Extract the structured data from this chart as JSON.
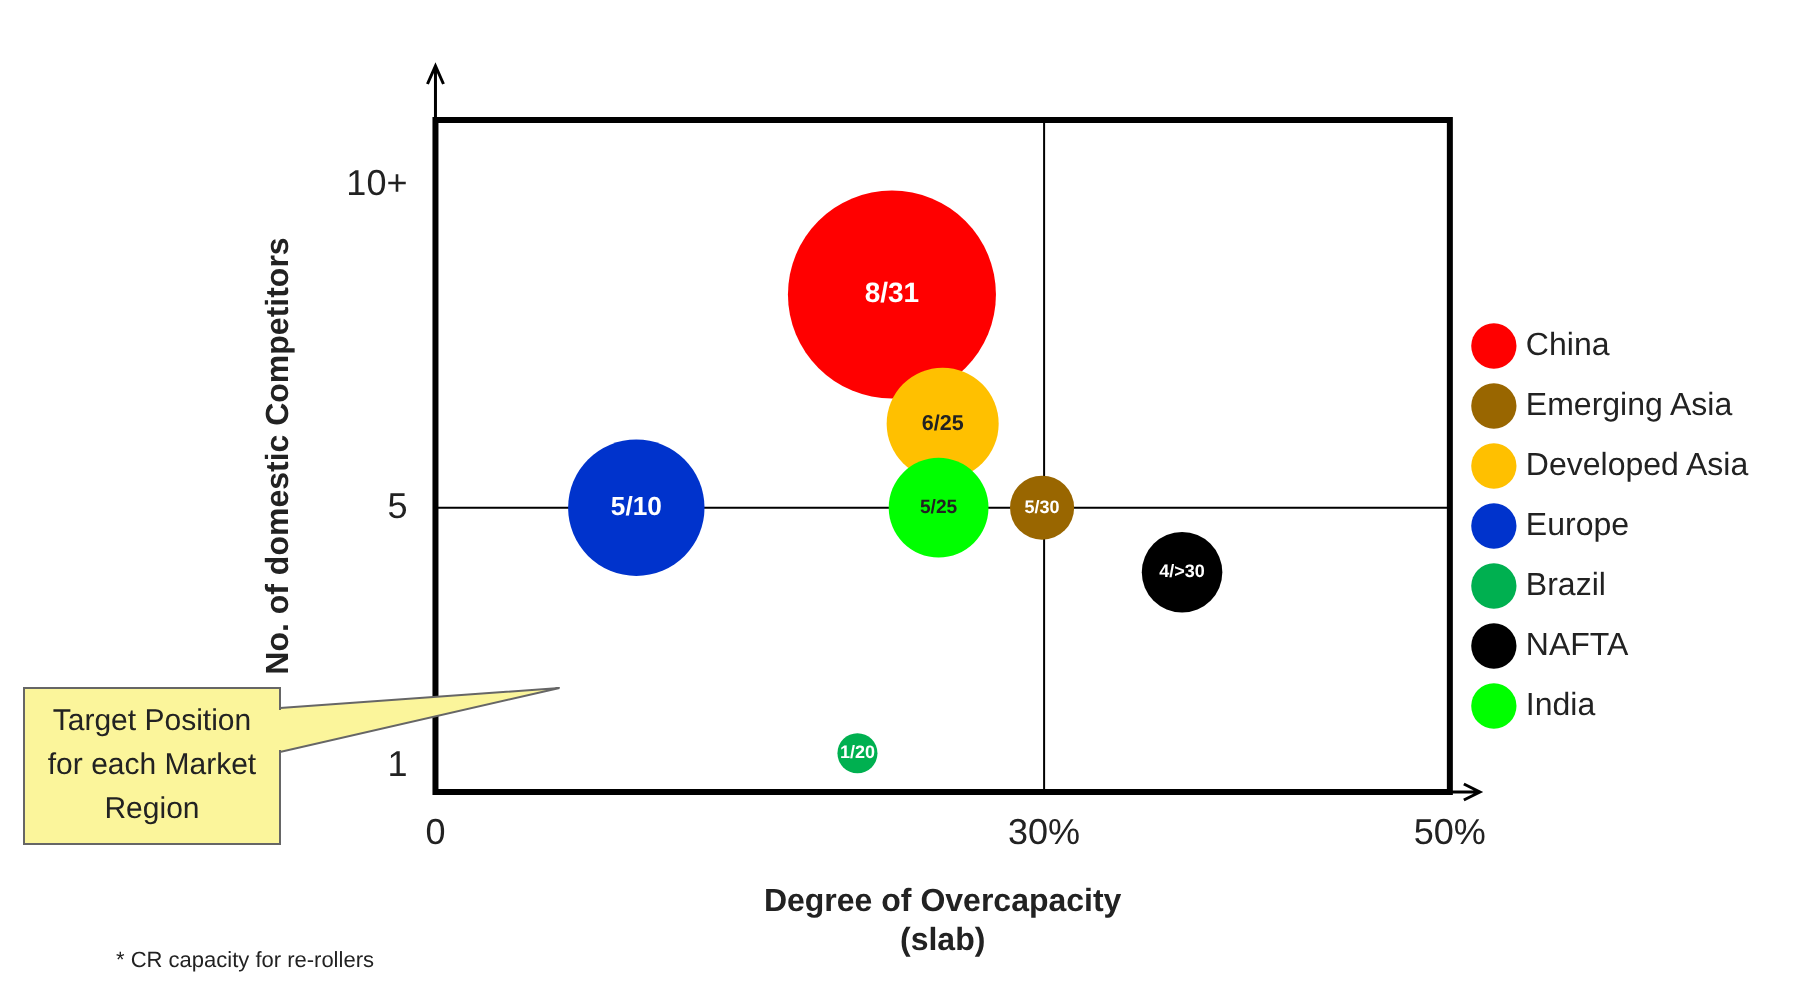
{
  "chart_data": {
    "type": "bubble",
    "xlabel": "Degree of Overcapacity (slab)",
    "ylabel": "No. of domestic Competitors",
    "xlim": [
      0,
      50
    ],
    "xticks": [
      0,
      {
        "value": 30,
        "label": "30%"
      },
      {
        "value": 50,
        "label": "50%"
      }
    ],
    "ylim": [
      0.6,
      11
    ],
    "yticks": [
      1,
      5,
      {
        "value": 10,
        "label": "10+"
      }
    ],
    "grid": false,
    "legend": "right",
    "ref_lines": [
      {
        "axis": "x",
        "value": 30
      },
      {
        "axis": "y",
        "value": 5
      }
    ],
    "annotations": [
      "Target Position for each Market Region",
      "* CR capacity for re-rollers",
      {
        "text": "8/31",
        "x": 22.5,
        "y": 8.3
      },
      {
        "text": "5/30",
        "x": 29.9,
        "y": 5
      },
      {
        "text": "6/25",
        "x": 25,
        "y": 6.3
      },
      {
        "text": "5/10",
        "x": 9.9,
        "y": 5
      },
      {
        "text": "1/20",
        "x": 20.8,
        "y": 1.2
      },
      {
        "text": "4/>30",
        "x": 36.8,
        "y": 4
      },
      {
        "text": "5/25",
        "x": 24.8,
        "y": 5
      }
    ],
    "series": [
      {
        "name": "China",
        "color": "#ff0000",
        "x": [
          22.5
        ],
        "values": [
          8.3
        ],
        "sizes": [
          1
        ]
      },
      {
        "name": "Emerging Asia",
        "color": "#996600",
        "x": [
          29.9
        ],
        "values": [
          5
        ],
        "sizes": [
          0.095
        ]
      },
      {
        "name": "Developed Asia",
        "color": "#ffc000",
        "x": [
          25
        ],
        "values": [
          6.3
        ],
        "sizes": [
          0.29
        ]
      },
      {
        "name": "Europe",
        "color": "#0033cc",
        "x": [
          9.9
        ],
        "values": [
          5
        ],
        "sizes": [
          0.43
        ]
      },
      {
        "name": "Brazil",
        "color": "#00b050",
        "x": [
          20.8
        ],
        "values": [
          1.2
        ],
        "sizes": [
          0.037
        ]
      },
      {
        "name": "NAFTA",
        "color": "#000000",
        "x": [
          36.8
        ],
        "values": [
          4
        ],
        "sizes": [
          0.15
        ]
      },
      {
        "name": "India",
        "color": "#00ff00",
        "x": [
          24.8
        ],
        "values": [
          5
        ],
        "sizes": [
          0.23
        ]
      }
    ]
  }
}
